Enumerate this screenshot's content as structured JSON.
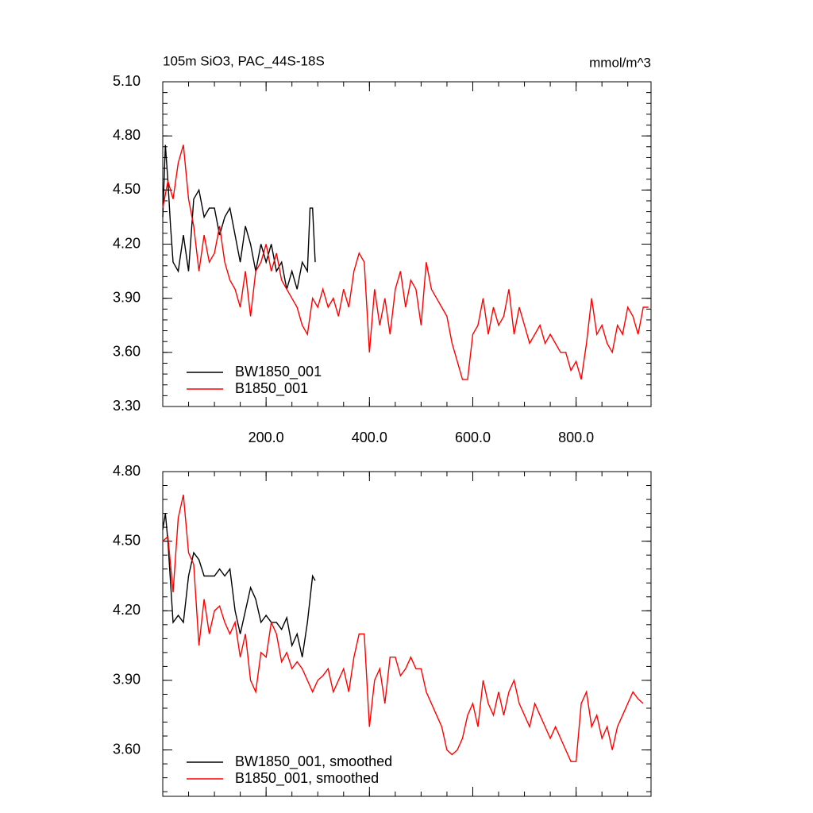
{
  "chart_data": [
    {
      "type": "line",
      "title": "105m SiO3, PAC_44S-18S",
      "units": "mmol/m^3",
      "xlim": [
        0,
        945
      ],
      "ylim": [
        3.3,
        5.1
      ],
      "xticks": [
        {
          "value": 200,
          "label": "200.0"
        },
        {
          "value": 400,
          "label": "400.0"
        },
        {
          "value": 600,
          "label": "600.0"
        },
        {
          "value": 800,
          "label": "800.0"
        }
      ],
      "yticks": [
        {
          "value": 3.3,
          "label": "3.30"
        },
        {
          "value": 3.6,
          "label": "3.60"
        },
        {
          "value": 3.9,
          "label": "3.90"
        },
        {
          "value": 4.2,
          "label": "4.20"
        },
        {
          "value": 4.5,
          "label": "4.50"
        },
        {
          "value": 4.8,
          "label": "4.80"
        },
        {
          "value": 5.1,
          "label": "5.10"
        }
      ],
      "legend": "lower left",
      "series": [
        {
          "name": "BW1850_001",
          "color": "#000000",
          "x": [
            0,
            5,
            10,
            15,
            20,
            30,
            40,
            50,
            60,
            70,
            80,
            90,
            100,
            110,
            120,
            130,
            140,
            150,
            160,
            170,
            180,
            190,
            200,
            210,
            220,
            230,
            240,
            250,
            260,
            270,
            280,
            285,
            290,
            295
          ],
          "values": [
            4.35,
            4.75,
            4.55,
            4.3,
            4.1,
            4.05,
            4.25,
            4.05,
            4.45,
            4.5,
            4.35,
            4.4,
            4.4,
            4.25,
            4.35,
            4.4,
            4.25,
            4.1,
            4.3,
            4.2,
            4.05,
            4.2,
            4.1,
            4.2,
            4.05,
            4.1,
            3.95,
            4.05,
            3.95,
            4.1,
            4.05,
            4.4,
            4.4,
            4.1
          ]
        },
        {
          "name": "B1850_001",
          "color": "#ff0000",
          "x": [
            0,
            10,
            20,
            30,
            40,
            50,
            60,
            70,
            80,
            90,
            100,
            110,
            120,
            130,
            140,
            150,
            160,
            170,
            180,
            190,
            200,
            210,
            220,
            230,
            240,
            250,
            260,
            270,
            280,
            290,
            300,
            310,
            320,
            330,
            340,
            350,
            360,
            370,
            380,
            390,
            400,
            410,
            420,
            430,
            440,
            450,
            460,
            470,
            480,
            490,
            500,
            510,
            520,
            530,
            540,
            550,
            560,
            570,
            580,
            590,
            600,
            610,
            620,
            630,
            640,
            650,
            660,
            670,
            680,
            690,
            700,
            710,
            720,
            730,
            740,
            750,
            760,
            770,
            780,
            790,
            800,
            810,
            820,
            830,
            840,
            850,
            860,
            870,
            880,
            890,
            900,
            910,
            920,
            930,
            940
          ],
          "values": [
            4.4,
            4.55,
            4.45,
            4.65,
            4.75,
            4.45,
            4.3,
            4.05,
            4.25,
            4.1,
            4.15,
            4.3,
            4.1,
            4.0,
            3.95,
            3.85,
            4.05,
            3.8,
            4.05,
            4.1,
            4.2,
            4.05,
            4.15,
            4.0,
            3.95,
            3.9,
            3.85,
            3.75,
            3.7,
            3.9,
            3.85,
            3.95,
            3.85,
            3.9,
            3.8,
            3.95,
            3.85,
            4.05,
            4.15,
            4.1,
            3.6,
            3.95,
            3.75,
            3.9,
            3.7,
            3.95,
            4.05,
            3.85,
            4.0,
            3.95,
            3.75,
            4.1,
            3.95,
            3.9,
            3.85,
            3.8,
            3.65,
            3.55,
            3.45,
            3.45,
            3.7,
            3.75,
            3.9,
            3.7,
            3.85,
            3.75,
            3.8,
            3.95,
            3.7,
            3.85,
            3.75,
            3.65,
            3.7,
            3.75,
            3.65,
            3.7,
            3.65,
            3.6,
            3.6,
            3.5,
            3.55,
            3.45,
            3.65,
            3.9,
            3.7,
            3.75,
            3.65,
            3.6,
            3.75,
            3.7,
            3.85,
            3.8,
            3.7,
            3.85,
            3.85
          ]
        }
      ]
    },
    {
      "type": "line",
      "xlim": [
        0,
        945
      ],
      "ylim": [
        3.4,
        4.8
      ],
      "xticks": [
        200,
        400,
        600,
        800
      ],
      "xtick_labels": false,
      "yticks": [
        {
          "value": 3.6,
          "label": "3.60"
        },
        {
          "value": 3.9,
          "label": "3.90"
        },
        {
          "value": 4.2,
          "label": "4.20"
        },
        {
          "value": 4.5,
          "label": "4.50"
        },
        {
          "value": 4.8,
          "label": "4.80"
        }
      ],
      "legend": "lower left",
      "series": [
        {
          "name": "BW1850_001, smoothed",
          "color": "#000000",
          "x": [
            0,
            5,
            10,
            20,
            30,
            40,
            50,
            60,
            70,
            80,
            90,
            100,
            110,
            120,
            130,
            140,
            150,
            160,
            170,
            180,
            190,
            200,
            210,
            220,
            230,
            240,
            250,
            260,
            270,
            280,
            290,
            295
          ],
          "values": [
            4.55,
            4.62,
            4.5,
            4.15,
            4.18,
            4.15,
            4.35,
            4.45,
            4.42,
            4.35,
            4.35,
            4.35,
            4.38,
            4.35,
            4.38,
            4.2,
            4.1,
            4.2,
            4.3,
            4.25,
            4.15,
            4.18,
            4.15,
            4.15,
            4.12,
            4.17,
            4.05,
            4.1,
            4.0,
            4.15,
            4.35,
            4.33
          ]
        },
        {
          "name": "B1850_001, smoothed",
          "color": "#ff0000",
          "x": [
            0,
            10,
            20,
            30,
            40,
            50,
            60,
            70,
            80,
            90,
            100,
            110,
            120,
            130,
            140,
            150,
            160,
            170,
            180,
            190,
            200,
            210,
            220,
            230,
            240,
            250,
            260,
            270,
            280,
            290,
            300,
            310,
            320,
            330,
            340,
            350,
            360,
            370,
            380,
            390,
            400,
            410,
            420,
            430,
            440,
            450,
            460,
            470,
            480,
            490,
            500,
            510,
            520,
            530,
            540,
            550,
            560,
            570,
            580,
            590,
            600,
            610,
            620,
            630,
            640,
            650,
            660,
            670,
            680,
            690,
            700,
            710,
            720,
            730,
            740,
            750,
            760,
            770,
            780,
            790,
            800,
            810,
            820,
            830,
            840,
            850,
            860,
            870,
            880,
            890,
            900,
            910,
            920,
            930
          ],
          "values": [
            4.5,
            4.52,
            4.28,
            4.6,
            4.7,
            4.45,
            4.4,
            4.05,
            4.25,
            4.1,
            4.2,
            4.22,
            4.15,
            4.1,
            4.15,
            4.0,
            4.1,
            3.9,
            3.85,
            4.02,
            4.0,
            4.15,
            4.1,
            3.98,
            4.02,
            3.95,
            3.98,
            3.95,
            3.9,
            3.85,
            3.9,
            3.92,
            3.95,
            3.85,
            3.9,
            3.95,
            3.85,
            4.0,
            4.1,
            4.1,
            3.7,
            3.9,
            3.95,
            3.8,
            4.0,
            4.0,
            3.92,
            3.95,
            4.0,
            3.95,
            3.95,
            3.85,
            3.8,
            3.75,
            3.7,
            3.6,
            3.58,
            3.6,
            3.65,
            3.75,
            3.8,
            3.7,
            3.9,
            3.8,
            3.75,
            3.85,
            3.75,
            3.85,
            3.9,
            3.8,
            3.75,
            3.7,
            3.8,
            3.75,
            3.7,
            3.65,
            3.7,
            3.65,
            3.6,
            3.55,
            3.55,
            3.8,
            3.85,
            3.7,
            3.75,
            3.65,
            3.7,
            3.6,
            3.7,
            3.75,
            3.8,
            3.85,
            3.82,
            3.8
          ]
        }
      ]
    }
  ]
}
